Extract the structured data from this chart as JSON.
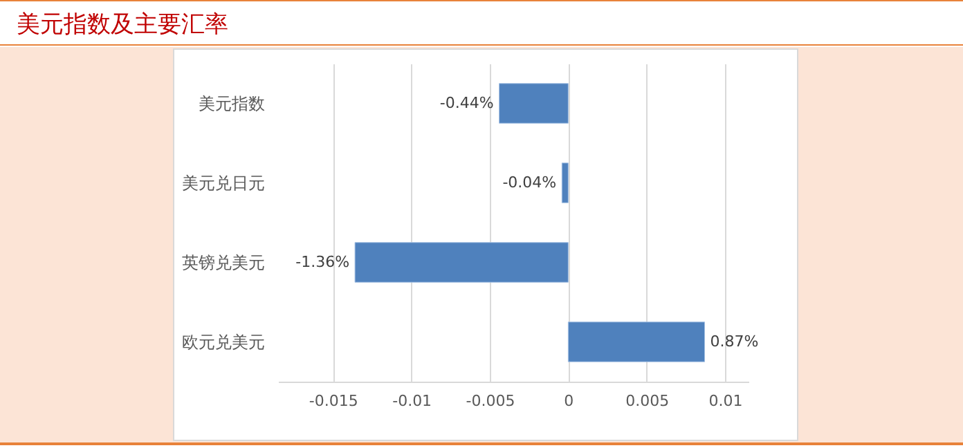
{
  "chart_data": {
    "type": "bar",
    "title": "美元指数及主要汇率",
    "orientation": "horizontal",
    "categories": [
      "美元指数",
      "美元兑日元",
      "英镑兑美元",
      "欧元兑美元"
    ],
    "values": [
      -0.0044,
      -0.0004,
      -0.0136,
      0.0087
    ],
    "value_labels": [
      "-0.44%",
      "-0.04%",
      "-1.36%",
      "0.87%"
    ],
    "color": "#4f81bd",
    "xlim": [
      -0.0185,
      0.0115
    ],
    "xticks": [
      -0.015,
      -0.01,
      -0.005,
      0,
      0.005,
      0.01
    ],
    "grid": "x"
  }
}
